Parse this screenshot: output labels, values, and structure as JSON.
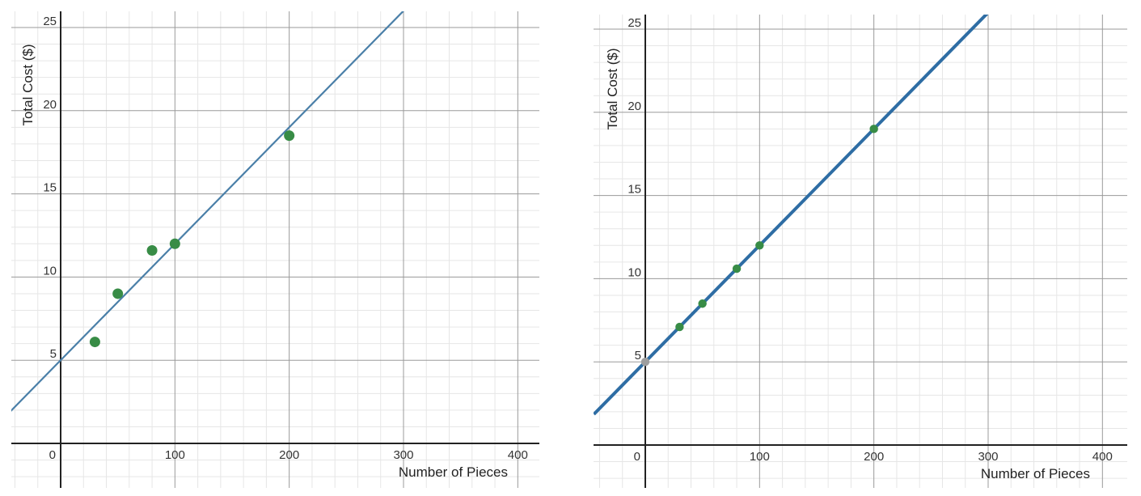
{
  "chart_data": [
    {
      "type": "scatter",
      "xlabel": "Number of Pieces",
      "ylabel": "Total Cost ($)",
      "xlim": [
        -45,
        415
      ],
      "ylim": [
        -2.5,
        26
      ],
      "x_ticks": [
        0,
        100,
        200,
        300,
        400
      ],
      "x_tick_labels": [
        "0",
        "100",
        "200",
        "300",
        "400"
      ],
      "y_ticks": [
        5,
        10,
        15,
        20,
        25
      ],
      "y_tick_labels": [
        "5",
        "10",
        "15",
        "20",
        "25"
      ],
      "grid": true,
      "minor_grid": true,
      "series": [
        {
          "points": [
            {
              "x": 30,
              "y": 6.1
            },
            {
              "x": 50,
              "y": 9.0
            },
            {
              "x": 80,
              "y": 11.6
            },
            {
              "x": 100,
              "y": 12.0
            },
            {
              "x": 200,
              "y": 18.5
            }
          ],
          "color": "#388c46"
        }
      ],
      "lines": [
        {
          "slope": 0.07,
          "intercept": 5,
          "color": "#4a7fa8",
          "style": "thin"
        }
      ]
    },
    {
      "type": "scatter",
      "xlabel": "Number of Pieces",
      "ylabel": "Total Cost ($)",
      "xlim": [
        -45,
        415
      ],
      "ylim": [
        -2.5,
        26
      ],
      "x_ticks": [
        0,
        100,
        200,
        300,
        400
      ],
      "x_tick_labels": [
        "0",
        "100",
        "200",
        "300",
        "400"
      ],
      "y_ticks": [
        5,
        10,
        15,
        20,
        25
      ],
      "y_tick_labels": [
        "5",
        "10",
        "15",
        "20",
        "25"
      ],
      "grid": true,
      "minor_grid": true,
      "series": [
        {
          "points": [
            {
              "x": 30,
              "y": 7.1
            },
            {
              "x": 50,
              "y": 8.5
            },
            {
              "x": 80,
              "y": 10.6
            },
            {
              "x": 100,
              "y": 12.0
            },
            {
              "x": 200,
              "y": 19.0
            }
          ],
          "color": "#388c46"
        },
        {
          "points": [
            {
              "x": 0,
              "y": 5
            }
          ],
          "color": "#9e9e9e"
        }
      ],
      "lines": [
        {
          "slope": 0.07,
          "intercept": 5,
          "color": "#2e6da4",
          "style": "thick"
        }
      ]
    }
  ]
}
